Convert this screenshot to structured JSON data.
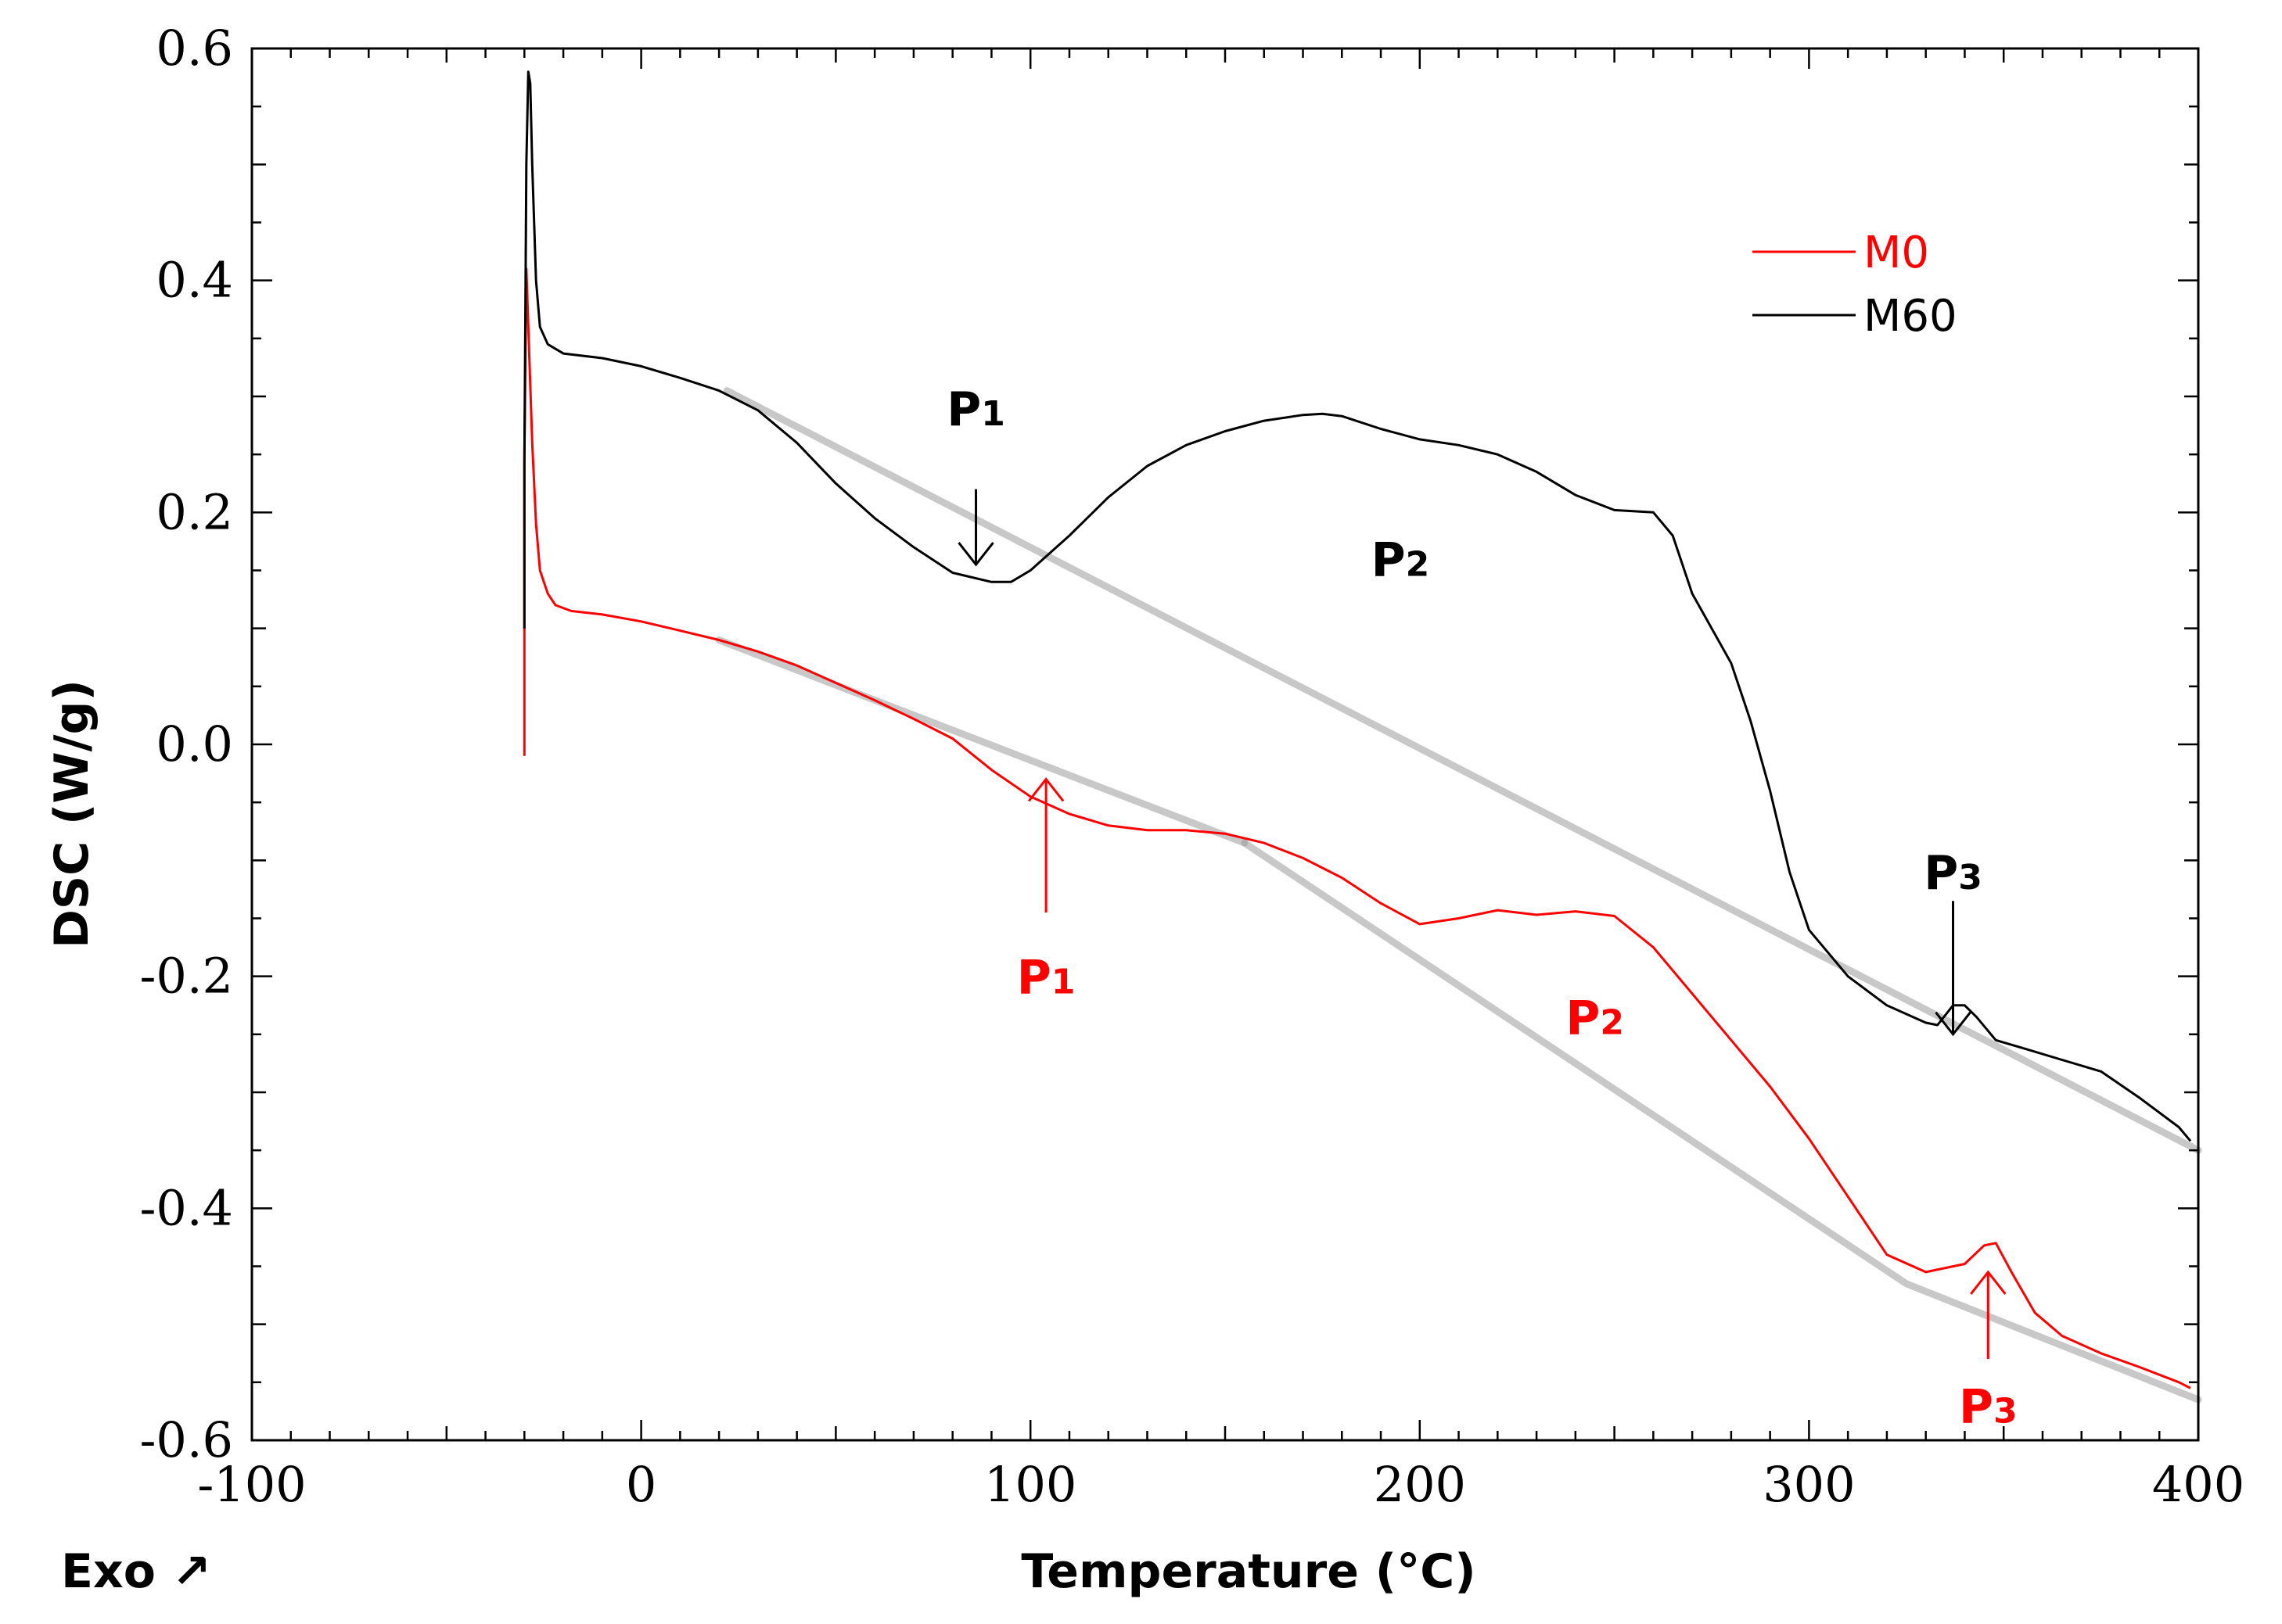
{
  "chart_data": {
    "type": "line",
    "title": "",
    "xlabel": "Temperature (°C)",
    "ylabel": "DSC (W/g)",
    "corner_label": "Exo ↗",
    "xlim": [
      -100,
      400
    ],
    "ylim": [
      -0.6,
      0.6
    ],
    "x_ticks": [
      -100,
      0,
      100,
      200,
      300,
      400
    ],
    "x_tick_labels": [
      "-100",
      "0",
      "100",
      "200",
      "300",
      "400"
    ],
    "y_ticks": [
      -0.6,
      -0.4,
      -0.2,
      0.0,
      0.2,
      0.4,
      0.6
    ],
    "y_tick_labels": [
      "-0.6",
      "-0.4",
      "-0.2",
      "0.0",
      "0.2",
      "0.4",
      "0.6"
    ],
    "grid": false,
    "legend_position": "top-right",
    "colors": {
      "M0": "#ff0000",
      "M60": "#000000",
      "baseline": "#9a9a9a"
    },
    "series": [
      {
        "name": "M0",
        "color": "#ff0000",
        "points": [
          [
            -30,
            -0.01
          ],
          [
            -30,
            0.25
          ],
          [
            -29.5,
            0.41
          ],
          [
            -29,
            0.36
          ],
          [
            -28,
            0.26
          ],
          [
            -27,
            0.19
          ],
          [
            -26,
            0.15
          ],
          [
            -24,
            0.13
          ],
          [
            -22,
            0.12
          ],
          [
            -18,
            0.115
          ],
          [
            -10,
            0.112
          ],
          [
            0,
            0.106
          ],
          [
            10,
            0.098
          ],
          [
            20,
            0.09
          ],
          [
            30,
            0.08
          ],
          [
            40,
            0.068
          ],
          [
            50,
            0.053
          ],
          [
            60,
            0.038
          ],
          [
            70,
            0.022
          ],
          [
            80,
            0.005
          ],
          [
            90,
            -0.022
          ],
          [
            100,
            -0.045
          ],
          [
            110,
            -0.06
          ],
          [
            120,
            -0.07
          ],
          [
            130,
            -0.074
          ],
          [
            140,
            -0.074
          ],
          [
            150,
            -0.077
          ],
          [
            160,
            -0.085
          ],
          [
            170,
            -0.098
          ],
          [
            180,
            -0.115
          ],
          [
            190,
            -0.137
          ],
          [
            200,
            -0.155
          ],
          [
            210,
            -0.15
          ],
          [
            220,
            -0.143
          ],
          [
            230,
            -0.147
          ],
          [
            240,
            -0.144
          ],
          [
            250,
            -0.148
          ],
          [
            260,
            -0.175
          ],
          [
            270,
            -0.215
          ],
          [
            280,
            -0.255
          ],
          [
            290,
            -0.295
          ],
          [
            300,
            -0.34
          ],
          [
            310,
            -0.39
          ],
          [
            320,
            -0.44
          ],
          [
            330,
            -0.455
          ],
          [
            340,
            -0.448
          ],
          [
            345,
            -0.432
          ],
          [
            348,
            -0.43
          ],
          [
            352,
            -0.455
          ],
          [
            358,
            -0.49
          ],
          [
            365,
            -0.51
          ],
          [
            375,
            -0.525
          ],
          [
            385,
            -0.537
          ],
          [
            395,
            -0.55
          ],
          [
            398,
            -0.555
          ]
        ]
      },
      {
        "name": "M60",
        "color": "#000000",
        "points": [
          [
            -30,
            0.1
          ],
          [
            -30,
            0.24
          ],
          [
            -29.5,
            0.5
          ],
          [
            -29,
            0.58
          ],
          [
            -28.5,
            0.57
          ],
          [
            -28,
            0.5
          ],
          [
            -27,
            0.4
          ],
          [
            -26,
            0.36
          ],
          [
            -24,
            0.345
          ],
          [
            -20,
            0.337
          ],
          [
            -10,
            0.333
          ],
          [
            0,
            0.326
          ],
          [
            10,
            0.316
          ],
          [
            20,
            0.305
          ],
          [
            30,
            0.288
          ],
          [
            40,
            0.26
          ],
          [
            50,
            0.225
          ],
          [
            60,
            0.195
          ],
          [
            70,
            0.17
          ],
          [
            80,
            0.148
          ],
          [
            90,
            0.14
          ],
          [
            95,
            0.14
          ],
          [
            100,
            0.15
          ],
          [
            110,
            0.18
          ],
          [
            120,
            0.213
          ],
          [
            130,
            0.24
          ],
          [
            140,
            0.258
          ],
          [
            150,
            0.27
          ],
          [
            160,
            0.279
          ],
          [
            170,
            0.284
          ],
          [
            175,
            0.285
          ],
          [
            180,
            0.283
          ],
          [
            190,
            0.272
          ],
          [
            200,
            0.263
          ],
          [
            210,
            0.258
          ],
          [
            220,
            0.25
          ],
          [
            230,
            0.235
          ],
          [
            240,
            0.215
          ],
          [
            250,
            0.202
          ],
          [
            260,
            0.2
          ],
          [
            265,
            0.18
          ],
          [
            270,
            0.13
          ],
          [
            280,
            0.07
          ],
          [
            285,
            0.02
          ],
          [
            290,
            -0.04
          ],
          [
            295,
            -0.11
          ],
          [
            300,
            -0.16
          ],
          [
            310,
            -0.2
          ],
          [
            320,
            -0.225
          ],
          [
            330,
            -0.24
          ],
          [
            333,
            -0.242
          ],
          [
            337,
            -0.225
          ],
          [
            340,
            -0.225
          ],
          [
            343,
            -0.235
          ],
          [
            348,
            -0.255
          ],
          [
            355,
            -0.262
          ],
          [
            365,
            -0.272
          ],
          [
            375,
            -0.282
          ],
          [
            385,
            -0.305
          ],
          [
            395,
            -0.33
          ],
          [
            398,
            -0.342
          ]
        ]
      }
    ],
    "baselines": [
      {
        "name": "M60 baseline",
        "points": [
          [
            22,
            0.305
          ],
          [
            400,
            -0.35
          ]
        ]
      },
      {
        "name": "M0 baseline segment 1",
        "points": [
          [
            20,
            0.09
          ],
          [
            155,
            -0.085
          ]
        ]
      },
      {
        "name": "M0 baseline segment 2",
        "points": [
          [
            155,
            -0.085
          ],
          [
            325,
            -0.465
          ],
          [
            400,
            -0.565
          ]
        ]
      }
    ],
    "annotations": [
      {
        "id": "m60-p1",
        "label": "P",
        "sub": "1",
        "series": "M60",
        "color": "#000000",
        "x": 86,
        "y": 0.29,
        "arrow": [
          [
            86,
            0.22
          ],
          [
            86,
            0.155
          ]
        ],
        "head": "down"
      },
      {
        "id": "m60-p2",
        "label": "P",
        "sub": "2",
        "series": "M60",
        "color": "#000000",
        "x": 195,
        "y": 0.16,
        "arrow": null
      },
      {
        "id": "m60-p3",
        "label": "P",
        "sub": "3",
        "series": "M60",
        "color": "#000000",
        "x": 337,
        "y": -0.11,
        "arrow": [
          [
            337,
            -0.135
          ],
          [
            337,
            -0.25
          ]
        ],
        "head": "down"
      },
      {
        "id": "m0-p1",
        "label": "P",
        "sub": "1",
        "series": "M0",
        "color": "#ff0000",
        "x": 104,
        "y": -0.2,
        "arrow": [
          [
            104,
            -0.145
          ],
          [
            104,
            -0.03
          ]
        ],
        "head": "up"
      },
      {
        "id": "m0-p2",
        "label": "P",
        "sub": "2",
        "series": "M0",
        "color": "#ff0000",
        "x": 245,
        "y": -0.235,
        "arrow": null
      },
      {
        "id": "m0-p3",
        "label": "P",
        "sub": "3",
        "series": "M0",
        "color": "#ff0000",
        "x": 346,
        "y": -0.57,
        "arrow": [
          [
            346,
            -0.53
          ],
          [
            346,
            -0.455
          ]
        ],
        "head": "up"
      }
    ]
  }
}
